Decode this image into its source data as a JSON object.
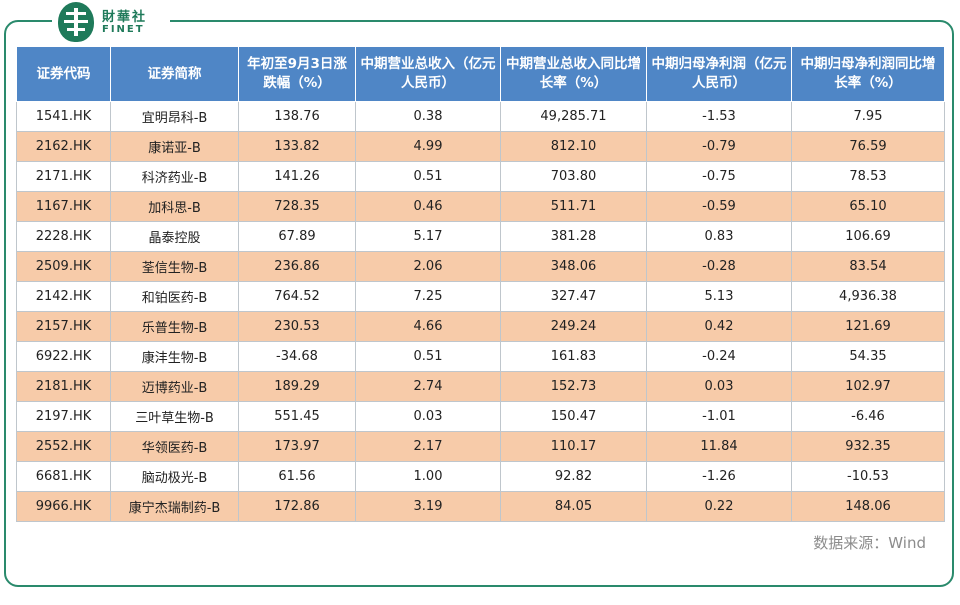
{
  "brand": {
    "cn": "財華社",
    "en": "FINET",
    "colors": {
      "primary": "#1f7a5a",
      "header": "#4f86c6",
      "alt_row": "#f7cba9"
    }
  },
  "table": {
    "headers": [
      "证券代码",
      "证券简称",
      "年初至9月3日涨跌幅（%）",
      "中期营业总收入（亿元人民币）",
      "中期营业总收入同比增长率（%）",
      "中期归母净利润（亿元人民币）",
      "中期归母净利润同比增长率（%）"
    ],
    "rows": [
      [
        "1541.HK",
        "宜明昂科-B",
        "138.76",
        "0.38",
        "49,285.71",
        "-1.53",
        "7.95"
      ],
      [
        "2162.HK",
        "康诺亚-B",
        "133.82",
        "4.99",
        "812.10",
        "-0.79",
        "76.59"
      ],
      [
        "2171.HK",
        "科济药业-B",
        "141.26",
        "0.51",
        "703.80",
        "-0.75",
        "78.53"
      ],
      [
        "1167.HK",
        "加科思-B",
        "728.35",
        "0.46",
        "511.71",
        "-0.59",
        "65.10"
      ],
      [
        "2228.HK",
        "晶泰控股",
        "67.89",
        "5.17",
        "381.28",
        "0.83",
        "106.69"
      ],
      [
        "2509.HK",
        "荃信生物-B",
        "236.86",
        "2.06",
        "348.06",
        "-0.28",
        "83.54"
      ],
      [
        "2142.HK",
        "和铂医药-B",
        "764.52",
        "7.25",
        "327.47",
        "5.13",
        "4,936.38"
      ],
      [
        "2157.HK",
        "乐普生物-B",
        "230.53",
        "4.66",
        "249.24",
        "0.42",
        "121.69"
      ],
      [
        "6922.HK",
        "康沣生物-B",
        "-34.68",
        "0.51",
        "161.83",
        "-0.24",
        "54.35"
      ],
      [
        "2181.HK",
        "迈博药业-B",
        "189.29",
        "2.74",
        "152.73",
        "0.03",
        "102.97"
      ],
      [
        "2197.HK",
        "三叶草生物-B",
        "551.45",
        "0.03",
        "150.47",
        "-1.01",
        "-6.46"
      ],
      [
        "2552.HK",
        "华领医药-B",
        "173.97",
        "2.17",
        "110.17",
        "11.84",
        "932.35"
      ],
      [
        "6681.HK",
        "脑动极光-B",
        "61.56",
        "1.00",
        "92.82",
        "-1.26",
        "-10.53"
      ],
      [
        "9966.HK",
        "康宁杰瑞制药-B",
        "172.86",
        "3.19",
        "84.05",
        "0.22",
        "148.06"
      ]
    ]
  },
  "source": "数据来源：Wind"
}
